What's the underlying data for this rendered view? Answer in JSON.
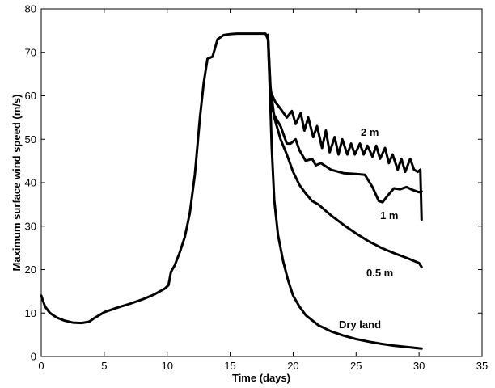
{
  "chart_data": {
    "type": "line",
    "title": "",
    "xlabel": "Time (days)",
    "ylabel": "Maximum surface wind speed (m/s)",
    "xlim": [
      0,
      35
    ],
    "ylim": [
      0,
      80
    ],
    "xticks": [
      "0",
      "5",
      "10",
      "15",
      "20",
      "25",
      "30",
      "35"
    ],
    "yticks": [
      "0",
      "10",
      "20",
      "30",
      "40",
      "50",
      "60",
      "70",
      "80"
    ],
    "grid": false,
    "legend": "none",
    "line_color": "#000000",
    "series": [
      {
        "name": "Dry land",
        "x": [
          0,
          0.3,
          0.7,
          1.2,
          1.8,
          2.5,
          3.2,
          3.8,
          4.2,
          5,
          6,
          7,
          8,
          9,
          9.8,
          10.1,
          10.3,
          10.6,
          11,
          11.4,
          11.8,
          12.2,
          12.6,
          12.9,
          13.2,
          13.6,
          14,
          14.5,
          15,
          15.5,
          16,
          16.5,
          17,
          17.5,
          17.8,
          18,
          18.1,
          18.2,
          18.3,
          18.5,
          18.8,
          19.2,
          19.6,
          20,
          20.5,
          21,
          22,
          23,
          24,
          25,
          26,
          27,
          28,
          29,
          30.2
        ],
        "y": [
          14,
          11.5,
          10,
          9,
          8.3,
          7.8,
          7.7,
          8,
          8.8,
          10.2,
          11.2,
          12.1,
          13.1,
          14.3,
          15.6,
          16.4,
          19.5,
          21,
          24,
          27.5,
          33,
          42,
          55,
          63,
          68.5,
          69,
          73,
          74,
          74.2,
          74.3,
          74.3,
          74.3,
          74.3,
          74.3,
          74.3,
          73,
          66,
          57,
          48,
          36,
          28,
          22,
          17.5,
          14,
          11.5,
          9.5,
          7.2,
          5.8,
          4.8,
          4,
          3.4,
          2.9,
          2.5,
          2.2,
          1.8
        ]
      },
      {
        "name": "0.5 m",
        "x": [
          18,
          18.2,
          18.5,
          19,
          19.5,
          20,
          20.5,
          21,
          21.5,
          22,
          23,
          24,
          25,
          26,
          27,
          28,
          29,
          30,
          30.2
        ],
        "y": [
          74,
          62,
          55,
          50,
          46.5,
          42.5,
          39.5,
          37.5,
          35.8,
          35,
          32.5,
          30.3,
          28.3,
          26.5,
          25,
          23.8,
          22.7,
          21.5,
          20.6
        ]
      },
      {
        "name": "1 m",
        "x": [
          18,
          18.2,
          18.5,
          19,
          19.5,
          19.8,
          20.2,
          20.5,
          21,
          21.5,
          21.8,
          22.2,
          23,
          24,
          25,
          25.7,
          26.3,
          26.8,
          27.1,
          27.5,
          28,
          28.5,
          29,
          29.5,
          30,
          30.2
        ],
        "y": [
          74,
          58.5,
          55.5,
          53,
          49,
          49,
          50,
          47.5,
          45,
          45.5,
          44,
          44.5,
          43,
          42.2,
          42,
          41.8,
          39,
          35.8,
          35.5,
          37,
          38.7,
          38.5,
          39,
          38.3,
          37.8,
          38
        ]
      },
      {
        "name": "2 m",
        "x": [
          18,
          18.2,
          18.6,
          19,
          19.5,
          19.9,
          20.2,
          20.6,
          20.9,
          21.2,
          21.6,
          21.9,
          22.3,
          22.6,
          22.9,
          23.3,
          23.6,
          23.9,
          24.3,
          24.6,
          24.9,
          25.3,
          25.6,
          25.9,
          26.3,
          26.6,
          26.9,
          27.3,
          27.6,
          27.9,
          28.3,
          28.6,
          28.9,
          29.3,
          29.6,
          29.9,
          30.1,
          30.2
        ],
        "y": [
          74,
          61,
          58.5,
          57,
          55,
          56.5,
          53.5,
          56,
          52,
          55,
          50.5,
          53,
          48,
          52,
          47,
          50.5,
          46.5,
          50,
          46.5,
          49,
          46.5,
          49,
          46.5,
          48.5,
          46,
          48.5,
          45.5,
          48,
          44.5,
          46.5,
          43,
          45.5,
          42.5,
          45.5,
          43,
          42.5,
          43,
          31.5
        ]
      }
    ],
    "annotations": [
      "2 m",
      "1 m",
      "0.5 m",
      "Dry land"
    ]
  }
}
